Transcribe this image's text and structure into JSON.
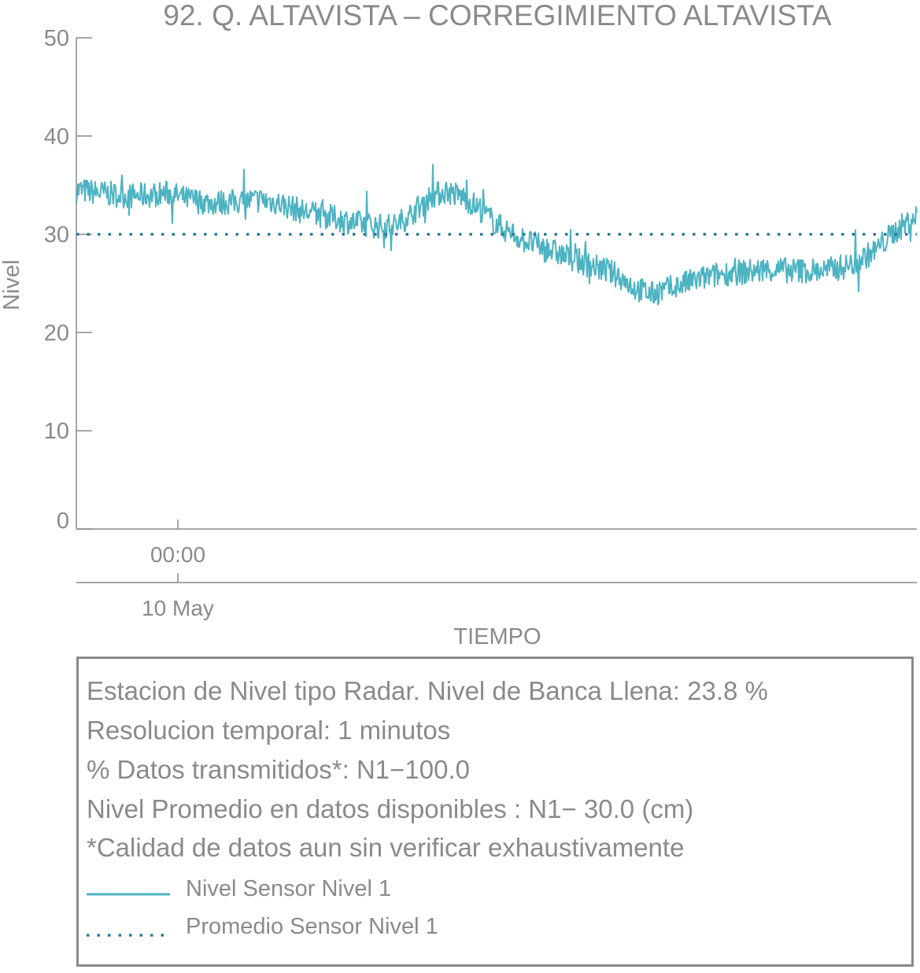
{
  "chart_data": {
    "type": "line",
    "title": "92. Q. ALTAVISTA – CORREGIMIENTO ALTAVISTA",
    "xlabel": "TIEMPO",
    "ylabel": "Nivel",
    "ylim": [
      0,
      50
    ],
    "yticks": [
      "0",
      "10",
      "20",
      "30",
      "40",
      "50"
    ],
    "xtick_time": "00:00",
    "xtick_date": "10 May",
    "grid": false,
    "series": [
      {
        "name": "Nivel Sensor Nivel 1",
        "style": "solid",
        "color": "#4db3c2",
        "points": [
          [
            0.0,
            34.5
          ],
          [
            0.03,
            34.2
          ],
          [
            0.06,
            33.9
          ],
          [
            0.09,
            34.0
          ],
          [
            0.11,
            34.2
          ],
          [
            0.13,
            33.6
          ],
          [
            0.16,
            33.2
          ],
          [
            0.19,
            33.3
          ],
          [
            0.22,
            33.5
          ],
          [
            0.24,
            33.2
          ],
          [
            0.27,
            32.3
          ],
          [
            0.3,
            31.8
          ],
          [
            0.33,
            31.2
          ],
          [
            0.36,
            30.8
          ],
          [
            0.38,
            30.9
          ],
          [
            0.4,
            32.2
          ],
          [
            0.42,
            33.8
          ],
          [
            0.44,
            34.4
          ],
          [
            0.46,
            33.8
          ],
          [
            0.48,
            32.6
          ],
          [
            0.5,
            31.0
          ],
          [
            0.53,
            29.5
          ],
          [
            0.56,
            28.5
          ],
          [
            0.59,
            27.5
          ],
          [
            0.62,
            26.6
          ],
          [
            0.645,
            25.8
          ],
          [
            0.665,
            24.5
          ],
          [
            0.685,
            23.9
          ],
          [
            0.71,
            24.6
          ],
          [
            0.74,
            25.4
          ],
          [
            0.77,
            26.0
          ],
          [
            0.8,
            26.2
          ],
          [
            0.83,
            26.4
          ],
          [
            0.86,
            26.3
          ],
          [
            0.89,
            26.3
          ],
          [
            0.92,
            26.8
          ],
          [
            0.95,
            28.3
          ],
          [
            0.97,
            30.0
          ],
          [
            0.99,
            31.3
          ],
          [
            1.0,
            31.9
          ]
        ]
      },
      {
        "name": "Promedio Sensor Nivel 1",
        "style": "dotted",
        "color": "#2a7a96",
        "points": [
          [
            0.0,
            30.0
          ],
          [
            1.0,
            30.0
          ]
        ]
      }
    ]
  },
  "info": {
    "line1": "Estacion de Nivel tipo Radar. Nivel de Banca Llena: 23.8 %",
    "line2": "Resolucion temporal: 1 minutos",
    "line3": "% Datos transmitidos*: N1−100.0",
    "line4": "Nivel Promedio en datos disponibles : N1− 30.0 (cm)",
    "line5": "*Calidad de datos aun sin verificar exhaustivamente"
  },
  "legend": [
    {
      "label": "Nivel Sensor Nivel 1",
      "color": "#4db3c2",
      "style": "solid"
    },
    {
      "label": "Promedio Sensor Nivel 1",
      "color": "#2a7a96",
      "style": "dotted"
    }
  ]
}
